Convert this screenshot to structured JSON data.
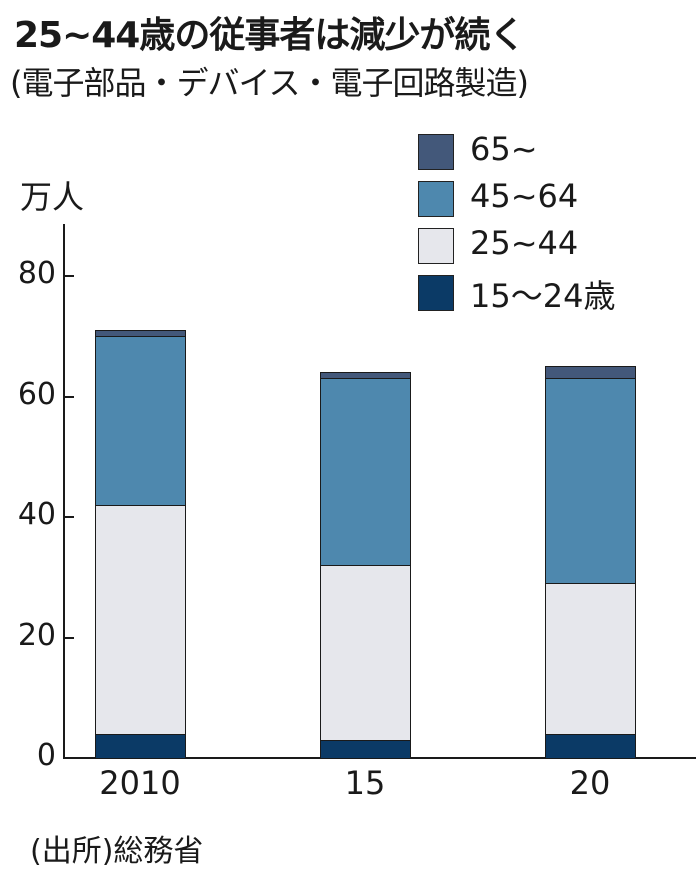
{
  "header": {
    "title": "25~44歳の従事者は減少が続く",
    "subtitle": "(電子部品・デバイス・電子回路製造)"
  },
  "axis": {
    "unit": "万人",
    "y_ticks": [
      "0",
      "20",
      "40",
      "60",
      "80"
    ],
    "x_ticks": [
      "2010",
      "15",
      "20"
    ]
  },
  "legend": [
    {
      "label": "65~",
      "color": "#43587a"
    },
    {
      "label": "45~64",
      "color": "#4e88ae"
    },
    {
      "label": "25~44",
      "color": "#e6e7ec"
    },
    {
      "label": "15～24歳",
      "color": "#0b3a66"
    }
  ],
  "footer": {
    "source": "(出所)総務省"
  },
  "chart_data": {
    "type": "bar",
    "stacked": true,
    "title": "25~44歳の従事者は減少が続く",
    "subtitle": "(電子部品・デバイス・電子回路製造)",
    "xlabel": "",
    "ylabel": "万人",
    "ylim": [
      0,
      88
    ],
    "y_ticks": [
      0,
      20,
      40,
      60,
      80
    ],
    "categories": [
      "2010",
      "15",
      "20"
    ],
    "series": [
      {
        "name": "15～24歳",
        "color": "#0b3a66",
        "values": [
          4,
          3,
          4
        ]
      },
      {
        "name": "25~44",
        "color": "#e6e7ec",
        "values": [
          38,
          29,
          25
        ]
      },
      {
        "name": "45~64",
        "color": "#4e88ae",
        "values": [
          28,
          31,
          34
        ]
      },
      {
        "name": "65~",
        "color": "#43587a",
        "values": [
          1,
          1,
          2
        ]
      }
    ],
    "totals": [
      71,
      64,
      65
    ],
    "legend_position": "top-right",
    "grid": false,
    "source": "(出所)総務省"
  }
}
